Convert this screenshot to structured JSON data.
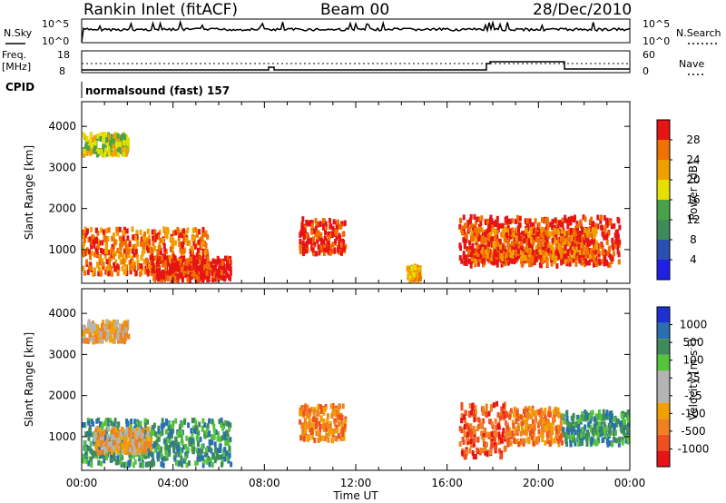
{
  "header": {
    "station": "Rankin Inlet (fitACF)",
    "beam": "Beam 00",
    "date": "28/Dec/2010"
  },
  "top_panels": {
    "nsky_label": "N.Sky",
    "nsearch_label": "N.Search",
    "freq_label": "Freq.",
    "freq_unit": "[MHz]",
    "nave_label": "Nave",
    "cpid_label": "CPID",
    "cpid_value": "normalsound (fast) 157",
    "noise_left_ticks": [
      "10^5",
      "10^0"
    ],
    "noise_right_ticks": [
      "10^5",
      "10^0"
    ],
    "freq_ticks": [
      "18",
      "8"
    ],
    "nave_ticks": [
      "60",
      "0"
    ]
  },
  "colors": {
    "power_scale": [
      "#1f1fe6",
      "#2a4fb0",
      "#3f8a5a",
      "#49a24a",
      "#e6e000",
      "#f0a000",
      "#f07000",
      "#e61414"
    ],
    "velocity_scale": [
      "#e61414",
      "#f05020",
      "#f08020",
      "#f0a000",
      "#b4b4b4",
      "#b4b4b4",
      "#55c43c",
      "#3f8a5a",
      "#2a6fb0",
      "#1f30d0"
    ]
  },
  "chart_data": [
    {
      "type": "heatmap",
      "panel": "power",
      "ylabel": "Slant Range [km]",
      "xlabel": "",
      "ylim": [
        180,
        4600
      ],
      "xlim": [
        "00:00",
        "24:00"
      ],
      "y_ticks": [
        "1000",
        "2000",
        "3000",
        "4000"
      ],
      "x_ticks": [
        "00:00",
        "04:00",
        "08:00",
        "12:00",
        "16:00",
        "20:00",
        "00:00"
      ],
      "colorbar_label": "Power [dB]",
      "colorbar_ticks": [
        "4",
        "8",
        "12",
        "16",
        "20",
        "24",
        "28"
      ],
      "regions": [
        {
          "t0": 0.0,
          "t1": 5.5,
          "r0": 400,
          "r1": 1500,
          "level": 6
        },
        {
          "t0": 3.0,
          "t1": 6.5,
          "r0": 250,
          "r1": 800,
          "level": 7
        },
        {
          "t0": 0.0,
          "t1": 2.0,
          "r0": 3300,
          "r1": 3800,
          "level": 4
        },
        {
          "t0": 9.5,
          "t1": 11.5,
          "r0": 900,
          "r1": 1750,
          "level": 7
        },
        {
          "t0": 14.2,
          "t1": 14.8,
          "r0": 250,
          "r1": 600,
          "level": 5
        },
        {
          "t0": 16.5,
          "t1": 23.5,
          "r0": 600,
          "r1": 1800,
          "level": 7
        },
        {
          "t0": 17.0,
          "t1": 22.5,
          "r0": 700,
          "r1": 1500,
          "level": 6
        }
      ]
    },
    {
      "type": "heatmap",
      "panel": "velocity",
      "ylabel": "Slant Range [km]",
      "xlabel": "Time UT",
      "ylim": [
        180,
        4600
      ],
      "xlim": [
        "00:00",
        "24:00"
      ],
      "y_ticks": [
        "1000",
        "2000",
        "3000",
        "4000"
      ],
      "x_ticks": [
        "00:00",
        "04:00",
        "08:00",
        "12:00",
        "16:00",
        "20:00",
        "00:00"
      ],
      "colorbar_label": "Velocity [m s^-1]",
      "colorbar_ticks": [
        "1000",
        "500",
        "100",
        "25",
        "-25",
        "-100",
        "-500",
        "-1000"
      ],
      "regions": [
        {
          "t0": 0.0,
          "t1": 6.5,
          "r0": 300,
          "r1": 1400,
          "level": 7
        },
        {
          "t0": 0.5,
          "t1": 3.0,
          "r0": 600,
          "r1": 1200,
          "level": 3
        },
        {
          "t0": 0.0,
          "t1": 2.0,
          "r0": 3300,
          "r1": 3800,
          "level": 3
        },
        {
          "t0": 9.5,
          "t1": 11.5,
          "r0": 900,
          "r1": 1750,
          "level": 2
        },
        {
          "t0": 16.5,
          "t1": 18.5,
          "r0": 500,
          "r1": 1800,
          "level": 1
        },
        {
          "t0": 18.5,
          "t1": 21.0,
          "r0": 800,
          "r1": 1700,
          "level": 2
        },
        {
          "t0": 21.0,
          "t1": 24.0,
          "r0": 800,
          "r1": 1600,
          "level": 7
        }
      ]
    }
  ]
}
